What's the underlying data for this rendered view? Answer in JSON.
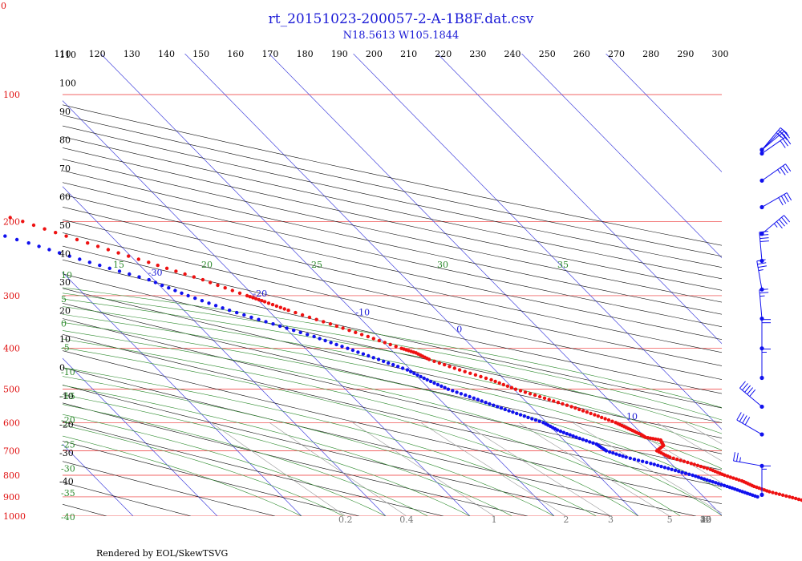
{
  "chart_data": {
    "type": "skew-t",
    "title": "rt_20151023-200057-2-A-1B8F.dat.csv",
    "subtitle": "N18.5613 W105.1844",
    "corner_mark": "0",
    "footer": "Rendered by EOL/SkewTSVG",
    "pressure_labels": [
      "100",
      "200",
      "300",
      "400",
      "500",
      "600",
      "700",
      "800",
      "900",
      "1000"
    ],
    "pressure_levels": [
      100,
      200,
      300,
      400,
      500,
      600,
      700,
      800,
      900,
      1000
    ],
    "potential_temperature_labels": [
      "110",
      "120",
      "130",
      "140",
      "150",
      "160",
      "170",
      "180",
      "190",
      "200",
      "210",
      "220",
      "230",
      "240",
      "250",
      "260",
      "270",
      "280",
      "290",
      "300"
    ],
    "left_column_labels": [
      "110",
      "100",
      "90",
      "80",
      "70",
      "60",
      "50",
      "40",
      "30",
      "20",
      "10",
      "0",
      "-10",
      "-20",
      "-30",
      "-40"
    ],
    "isotherm_labels": [
      {
        "text": "-110",
        "t": -110
      },
      {
        "text": "-100",
        "t": -100
      },
      {
        "text": "-90",
        "t": -90
      },
      {
        "text": "-80",
        "t": -80
      },
      {
        "text": "-70",
        "t": -70
      },
      {
        "text": "-60",
        "t": -60
      },
      {
        "text": "-50",
        "t": -50
      },
      {
        "text": "-40",
        "t": -40
      },
      {
        "text": "-30",
        "t": -30
      },
      {
        "text": "-20",
        "t": -20
      },
      {
        "text": "-10",
        "t": -10
      },
      {
        "text": "0",
        "t": 0
      },
      {
        "text": "10",
        "t": 10
      },
      {
        "text": "20",
        "t": 20
      },
      {
        "text": "30",
        "t": 30
      }
    ],
    "moist_adiabat_labels": [
      "15",
      "20",
      "25",
      "30",
      "35"
    ],
    "moist_adiabat_left_labels": [
      "10",
      "5",
      "0",
      "-5",
      "-10",
      "-15",
      "-20",
      "-25",
      "-30",
      "-35",
      "-40"
    ],
    "mixing_ratio_labels": [
      "0.2",
      "0.4",
      "1",
      "2",
      "3",
      "5",
      "8",
      "12",
      "16",
      "20",
      "30",
      "40"
    ],
    "temperature_profile": [
      [
        1000,
        27.2
      ],
      [
        975,
        25.6
      ],
      [
        950,
        23.6
      ],
      [
        925,
        21.8
      ],
      [
        900,
        20.2
      ],
      [
        875,
        18.4
      ],
      [
        850,
        17.2
      ],
      [
        825,
        16.4
      ],
      [
        800,
        15.0
      ],
      [
        775,
        14.0
      ],
      [
        750,
        12.4
      ],
      [
        725,
        10.6
      ],
      [
        700,
        9.8
      ],
      [
        680,
        11.2
      ],
      [
        660,
        11.5
      ],
      [
        650,
        10.0
      ],
      [
        640,
        9.8
      ],
      [
        620,
        9.0
      ],
      [
        600,
        8.2
      ],
      [
        575,
        6.6
      ],
      [
        550,
        4.8
      ],
      [
        525,
        2.6
      ],
      [
        500,
        0.2
      ],
      [
        475,
        -1.6
      ],
      [
        450,
        -4.2
      ],
      [
        425,
        -6.6
      ],
      [
        410,
        -7.4
      ],
      [
        400,
        -8.6
      ],
      [
        375,
        -11.2
      ],
      [
        350,
        -14.2
      ],
      [
        325,
        -17.6
      ],
      [
        310,
        -19.4
      ],
      [
        300,
        -20.8
      ],
      [
        275,
        -24.2
      ],
      [
        250,
        -28.6
      ],
      [
        225,
        -33.6
      ],
      [
        200,
        -38.8
      ],
      [
        175,
        -45.0
      ],
      [
        150,
        -52.4
      ],
      [
        125,
        -61.6
      ],
      [
        115,
        -66.0
      ],
      [
        110,
        -71.0
      ],
      [
        105,
        -74.6
      ],
      [
        100,
        -78.0
      ],
      [
        97,
        -80.4
      ],
      [
        93,
        -80.8
      ],
      [
        90,
        -80.0
      ],
      [
        88,
        -79.0
      ],
      [
        86,
        -78.8
      ]
    ],
    "dewpoint_profile": [
      [
        900,
        16.4
      ],
      [
        875,
        15.2
      ],
      [
        850,
        14.0
      ],
      [
        825,
        12.6
      ],
      [
        800,
        11.2
      ],
      [
        775,
        9.4
      ],
      [
        750,
        7.6
      ],
      [
        725,
        5.4
      ],
      [
        700,
        3.8
      ],
      [
        675,
        3.4
      ],
      [
        650,
        1.8
      ],
      [
        625,
        0.4
      ],
      [
        600,
        -0.4
      ],
      [
        575,
        -2.2
      ],
      [
        550,
        -4.0
      ],
      [
        525,
        -5.8
      ],
      [
        500,
        -7.8
      ],
      [
        475,
        -9.2
      ],
      [
        450,
        -10.4
      ],
      [
        425,
        -12.6
      ],
      [
        400,
        -15.0
      ],
      [
        375,
        -17.6
      ],
      [
        350,
        -21.0
      ],
      [
        325,
        -24.6
      ],
      [
        300,
        -27.8
      ],
      [
        275,
        -30.6
      ],
      [
        250,
        -35.6
      ],
      [
        225,
        -40.6
      ],
      [
        200,
        -46.6
      ],
      [
        190,
        -50.0
      ],
      [
        180,
        -53.6
      ],
      [
        170,
        -58.0
      ],
      [
        160,
        -63.0
      ],
      [
        150,
        -69.0
      ],
      [
        140,
        -76.0
      ],
      [
        130,
        -84.0
      ],
      [
        120,
        -93.0
      ]
    ],
    "wind_barbs": [
      {
        "p": 94,
        "dir": 220,
        "spd": 30
      },
      {
        "p": 105,
        "dir": 225,
        "spd": 25
      },
      {
        "p": 121,
        "dir": 230,
        "spd": 20
      },
      {
        "p": 138,
        "dir": 235,
        "spd": 30
      },
      {
        "p": 160,
        "dir": 235,
        "spd": 35
      },
      {
        "p": 185,
        "dir": 240,
        "spd": 40
      },
      {
        "p": 214,
        "dir": 230,
        "spd": 45
      },
      {
        "p": 248,
        "dir": 175,
        "spd": 40
      },
      {
        "p": 290,
        "dir": 170,
        "spd": 35
      },
      {
        "p": 340,
        "dir": 175,
        "spd": 25
      },
      {
        "p": 400,
        "dir": 180,
        "spd": 20
      },
      {
        "p": 470,
        "dir": 180,
        "spd": 15
      },
      {
        "p": 550,
        "dir": 130,
        "spd": 50
      },
      {
        "p": 640,
        "dir": 120,
        "spd": 40
      },
      {
        "p": 760,
        "dir": 100,
        "spd": 25
      },
      {
        "p": 890,
        "dir": 180,
        "spd": 15
      }
    ],
    "colors": {
      "temperature": "#ee1111",
      "dewpoint": "#1111ee",
      "isobar": "#ee3333",
      "isotherm": "#4444dd",
      "dry_adiabat": "#111111",
      "moist_adiabat": "#2e8b2e",
      "mixing_ratio": "#999999",
      "title": "#1a1ad6"
    }
  }
}
